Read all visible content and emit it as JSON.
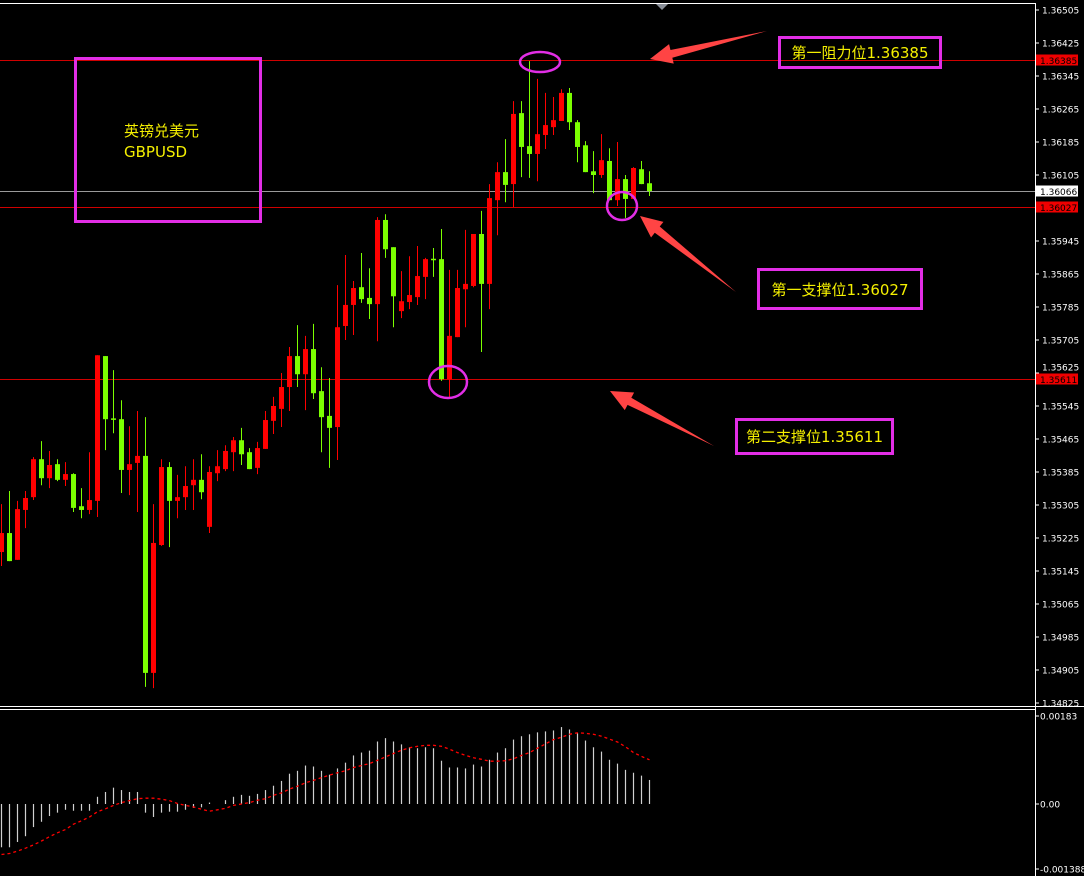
{
  "symbol_box": {
    "name_cn": "英镑兑美元",
    "symbol": "GBPUSD"
  },
  "annotations": {
    "resistance1": "第一阻力位1.36385",
    "support1": "第一支撑位1.36027",
    "support2": "第二支撑位1.35611"
  },
  "colors": {
    "up": "#ff0000",
    "down": "#7cff00",
    "annotation_box": "#e22ee6",
    "annotation_text": "#f5f000",
    "arrow": "#ff4444",
    "level_line": "#d00000",
    "macd_hist": "#d0d0d0",
    "macd_signal": "#ff0000"
  },
  "chart_data": [
    {
      "type": "candlestick",
      "ylim": [
        1.34825,
        1.36505
      ],
      "grid": false,
      "y_ticks": [
        "1.36505",
        "1.36425",
        "1.36345",
        "1.36265",
        "1.36185",
        "1.36105",
        "1.35945",
        "1.35865",
        "1.35785",
        "1.35705",
        "1.35625",
        "1.35545",
        "1.35465",
        "1.35385",
        "1.35305",
        "1.35225",
        "1.35145",
        "1.35065",
        "1.34985",
        "1.34905",
        "1.34825"
      ],
      "levels": {
        "resistance1": "1.36385",
        "bid": "1.36066",
        "support1": "1.36027",
        "support2": "1.35611"
      },
      "ohlc": [
        [
          1.35191,
          1.35307,
          1.35157,
          1.35237
        ],
        [
          1.35237,
          1.35339,
          1.35169,
          1.35169
        ],
        [
          1.35172,
          1.35315,
          1.35172,
          1.35295
        ],
        [
          1.35293,
          1.35339,
          1.35249,
          1.35322
        ],
        [
          1.35324,
          1.35421,
          1.35317,
          1.35416
        ],
        [
          1.35416,
          1.3546,
          1.35353,
          1.3537
        ],
        [
          1.3537,
          1.35436,
          1.35346,
          1.35402
        ],
        [
          1.35404,
          1.35416,
          1.35363,
          1.35366
        ],
        [
          1.35366,
          1.35409,
          1.35351,
          1.3538
        ],
        [
          1.3538,
          1.35382,
          1.35288,
          1.35298
        ],
        [
          1.35302,
          1.35346,
          1.35273,
          1.35293
        ],
        [
          1.35293,
          1.35433,
          1.35283,
          1.35317
        ],
        [
          1.35315,
          1.35668,
          1.35276,
          1.35668
        ],
        [
          1.35666,
          1.35666,
          1.35438,
          1.35513
        ],
        [
          1.35515,
          1.35632,
          1.35479,
          1.35513
        ],
        [
          1.35513,
          1.35559,
          1.35334,
          1.3539
        ],
        [
          1.3539,
          1.35496,
          1.35329,
          1.35404
        ],
        [
          1.35407,
          1.35533,
          1.35288,
          1.35424
        ],
        [
          1.35424,
          1.35518,
          1.34864,
          1.34898
        ],
        [
          1.34898,
          1.35307,
          1.34861,
          1.35213
        ],
        [
          1.35208,
          1.35416,
          1.35206,
          1.35397
        ],
        [
          1.35397,
          1.35409,
          1.35203,
          1.35315
        ],
        [
          1.35315,
          1.35378,
          1.35273,
          1.35324
        ],
        [
          1.35324,
          1.35399,
          1.35293,
          1.35351
        ],
        [
          1.35353,
          1.35416,
          1.35293,
          1.35366
        ],
        [
          1.35366,
          1.35428,
          1.35319,
          1.35336
        ],
        [
          1.35252,
          1.35399,
          1.35237,
          1.35385
        ],
        [
          1.35382,
          1.35438,
          1.35363,
          1.35399
        ],
        [
          1.35392,
          1.3545,
          1.35387,
          1.35436
        ],
        [
          1.35433,
          1.3547,
          1.35387,
          1.35462
        ],
        [
          1.35462,
          1.35492,
          1.35402,
          1.35428
        ],
        [
          1.35433,
          1.35443,
          1.35392,
          1.35392
        ],
        [
          1.35395,
          1.35458,
          1.3538,
          1.35443
        ],
        [
          1.35441,
          1.35533,
          1.35441,
          1.35511
        ],
        [
          1.35509,
          1.35567,
          1.35477,
          1.35545
        ],
        [
          1.35538,
          1.35625,
          1.35494,
          1.35591
        ],
        [
          1.35591,
          1.35688,
          1.35533,
          1.35666
        ],
        [
          1.35666,
          1.35741,
          1.35591,
          1.35622
        ],
        [
          1.35622,
          1.35715,
          1.35535,
          1.35683
        ],
        [
          1.35683,
          1.35744,
          1.35562,
          1.35576
        ],
        [
          1.35581,
          1.35639,
          1.35433,
          1.35518
        ],
        [
          1.35521,
          1.35613,
          1.35395,
          1.35492
        ],
        [
          1.35494,
          1.35838,
          1.35414,
          1.35736
        ],
        [
          1.35739,
          1.35911,
          1.35705,
          1.3579
        ],
        [
          1.3579,
          1.35848,
          1.35717,
          1.35831
        ],
        [
          1.35833,
          1.35916,
          1.35795,
          1.35804
        ],
        [
          1.35807,
          1.35879,
          1.35756,
          1.35792
        ],
        [
          1.35792,
          1.36003,
          1.35702,
          1.35996
        ],
        [
          1.35996,
          1.3601,
          1.35904,
          1.35925
        ],
        [
          1.3593,
          1.3593,
          1.35736,
          1.35811
        ],
        [
          1.35775,
          1.35872,
          1.35758,
          1.35799
        ],
        [
          1.35797,
          1.35908,
          1.3578,
          1.35814
        ],
        [
          1.35809,
          1.35933,
          1.3579,
          1.3586
        ],
        [
          1.35858,
          1.35904,
          1.35804,
          1.35901
        ],
        [
          1.35902,
          1.35928,
          1.35858,
          1.35901
        ],
        [
          1.35901,
          1.35974,
          1.35606,
          1.3561
        ],
        [
          1.3561,
          1.35875,
          1.35567,
          1.35715
        ],
        [
          1.35712,
          1.35875,
          1.35712,
          1.35831
        ],
        [
          1.35828,
          1.35972,
          1.35736,
          1.35841
        ],
        [
          1.35836,
          1.35962,
          1.35833,
          1.35962
        ],
        [
          1.35962,
          1.36018,
          1.35676,
          1.35841
        ],
        [
          1.35841,
          1.36083,
          1.3578,
          1.36049
        ],
        [
          1.36044,
          1.36136,
          1.35959,
          1.36112
        ],
        [
          1.36112,
          1.36192,
          1.36039,
          1.36081
        ],
        [
          1.36083,
          1.36284,
          1.36027,
          1.36253
        ],
        [
          1.36255,
          1.36284,
          1.361,
          1.36173
        ],
        [
          1.36175,
          1.36381,
          1.36098,
          1.36156
        ],
        [
          1.36156,
          1.36338,
          1.3609,
          1.36204
        ],
        [
          1.36202,
          1.36304,
          1.36168,
          1.36226
        ],
        [
          1.36221,
          1.36294,
          1.36202,
          1.36238
        ],
        [
          1.36236,
          1.36313,
          1.36236,
          1.36304
        ],
        [
          1.36304,
          1.36316,
          1.36214,
          1.36233
        ],
        [
          1.36233,
          1.36238,
          1.36136,
          1.36173
        ],
        [
          1.36177,
          1.36187,
          1.36112,
          1.36112
        ],
        [
          1.36114,
          1.36163,
          1.36061,
          1.36105
        ],
        [
          1.36105,
          1.36204,
          1.36098,
          1.36141
        ],
        [
          1.36139,
          1.3617,
          1.36044,
          1.36044
        ],
        [
          1.36044,
          1.36185,
          1.3603,
          1.36095
        ],
        [
          1.36095,
          1.36105,
          1.36001,
          1.36047
        ],
        [
          1.36047,
          1.36124,
          1.36047,
          1.36122
        ],
        [
          1.36119,
          1.36139,
          1.36083,
          1.36083
        ],
        [
          1.36085,
          1.36114,
          1.36054,
          1.36066
        ]
      ]
    },
    {
      "type": "bar+line",
      "ylim": [
        -0.001388,
        0.00183
      ],
      "y_ticks": [
        "0.00183",
        "0.00",
        "-0.001388"
      ],
      "histogram": [
        -0.0009,
        -0.0009,
        -0.00079,
        -0.00067,
        -0.00048,
        -0.00037,
        -0.00025,
        -0.00018,
        -0.00012,
        -0.00014,
        -0.00014,
        -0.00014,
        0.00015,
        0.00025,
        0.00034,
        0.00029,
        0.00025,
        0.00025,
        -0.00018,
        -0.00027,
        -0.00018,
        -0.00016,
        -0.00016,
        -0.00012,
        -8e-05,
        -7e-05,
        3e-05,
        0.0,
        8e-05,
        0.00015,
        0.00019,
        0.00017,
        0.00021,
        0.00029,
        0.00038,
        0.00048,
        0.00063,
        0.00069,
        0.0008,
        0.00078,
        0.00069,
        0.00061,
        0.00074,
        0.00086,
        0.00101,
        0.00107,
        0.00111,
        0.0013,
        0.00137,
        0.0013,
        0.00124,
        0.00118,
        0.00116,
        0.00118,
        0.00116,
        0.0009,
        0.00076,
        0.00076,
        0.00074,
        0.00082,
        0.00078,
        0.00092,
        0.00107,
        0.00116,
        0.00134,
        0.00141,
        0.00145,
        0.00149,
        0.00151,
        0.00153,
        0.0016,
        0.00155,
        0.00147,
        0.00132,
        0.00118,
        0.00109,
        0.00092,
        0.00084,
        0.00071,
        0.00065,
        0.00059,
        0.0005
      ],
      "signal": [
        -0.00105,
        -0.00103,
        -0.00098,
        -0.00092,
        -0.00085,
        -0.00077,
        -0.00068,
        -0.0006,
        -0.00053,
        -0.00042,
        -0.00035,
        -0.00027,
        -0.00016,
        -0.0001,
        -3e-05,
        3e-05,
        7e-05,
        0.00011,
        0.00012,
        0.00012,
        0.0001,
        7e-05,
        1e-05,
        -3e-05,
        -6e-05,
        -0.00011,
        -0.00015,
        -0.00012,
        -9e-05,
        -3e-05,
        0.0,
        3e-05,
        8e-05,
        0.00011,
        0.00018,
        0.00023,
        0.00031,
        0.00037,
        0.00044,
        0.00049,
        0.00055,
        0.0006,
        0.00065,
        0.00069,
        0.00076,
        0.0008,
        0.00084,
        0.00091,
        0.00098,
        0.00105,
        0.00112,
        0.00117,
        0.0012,
        0.00122,
        0.00122,
        0.0012,
        0.00114,
        0.00107,
        0.00101,
        0.00096,
        0.00093,
        0.00089,
        0.00089,
        0.0009,
        0.00094,
        0.00101,
        0.00107,
        0.00116,
        0.00125,
        0.00134,
        0.00139,
        0.00145,
        0.00148,
        0.00147,
        0.00145,
        0.00141,
        0.00135,
        0.00129,
        0.00119,
        0.00107,
        0.00099,
        0.00092
      ]
    }
  ]
}
